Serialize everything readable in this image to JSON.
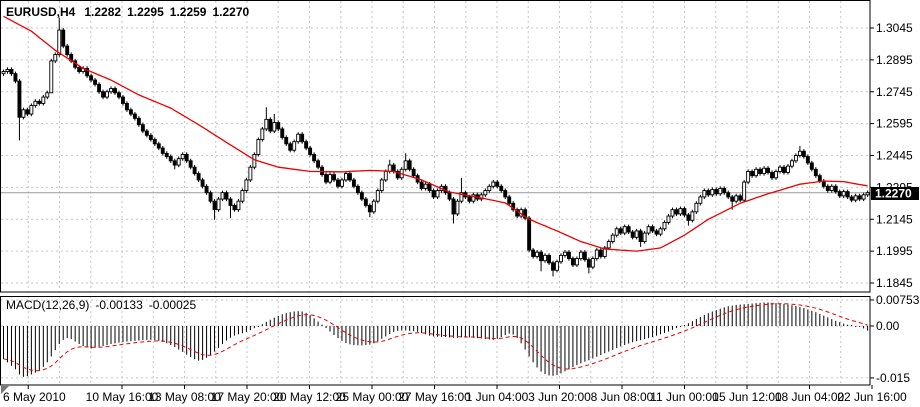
{
  "main_chart": {
    "symbol_period": "EURUSD,H4",
    "ohlc": {
      "open": "1.2282",
      "high": "1.2295",
      "low": "1.2259",
      "close": "1.2270"
    },
    "current_price": "1.2270",
    "price_axis_labels": [
      "1.3045",
      "1.2895",
      "1.2745",
      "1.2595",
      "1.2445",
      "1.2295",
      "1.2145",
      "1.1995",
      "1.1845"
    ]
  },
  "macd_panel": {
    "indicator_label": "MACD(12,26,9)",
    "macd_value": "-0.00133",
    "signal_value": "-0.00025",
    "axis_labels": [
      "0.00753",
      "0.00",
      "-0.015"
    ]
  },
  "date_axis": {
    "labels": [
      "6 May 2010",
      "10 May 16:00",
      "13 May 08:00",
      "17 May 20:00",
      "20 May 12:00",
      "25 May 00:00",
      "27 May 16:00",
      "1 Jun 04:00",
      "3 Jun 20:00",
      "8 Jun 08:00",
      "11 Jun 00:00",
      "15 Jun 12:00",
      "18 Jun 04:00",
      "22 Jun 16:00"
    ]
  },
  "colors": {
    "background": "#ffffff",
    "grid": "#c6c6c6",
    "bull_body": "#ffffff",
    "bear_body": "#000000",
    "candle_outline": "#000000",
    "ma_line": "#ee0000",
    "signal_line": "#ee0000",
    "histogram": "#000000",
    "price_line": "#999999",
    "price_badge_bg": "#000000",
    "price_badge_text": "#ffffff",
    "panel_border": "#000000",
    "text": "#000000"
  },
  "chart_data": [
    {
      "type": "candlestick",
      "title": "EURUSD,H4",
      "symbol": "EURUSD",
      "timeframe": "H4",
      "grid": "on",
      "y_ticks": [
        1.3045,
        1.2895,
        1.2745,
        1.2595,
        1.2445,
        1.2295,
        1.2145,
        1.1995,
        1.1845
      ],
      "current_price": 1.227,
      "bar_count": 218,
      "open_rule": "previous_close",
      "first_open": 1.283,
      "default_wick": 0.001,
      "closes": [
        1.284,
        1.285,
        1.283,
        1.2795,
        1.2625,
        1.266,
        1.264,
        1.268,
        1.27,
        1.269,
        1.272,
        1.274,
        1.289,
        1.292,
        1.3035,
        1.296,
        1.292,
        1.289,
        1.286,
        1.284,
        1.2855,
        1.282,
        1.28,
        1.278,
        1.2745,
        1.272,
        1.2745,
        1.276,
        1.274,
        1.272,
        1.269,
        1.266,
        1.264,
        1.262,
        1.259,
        1.256,
        1.254,
        1.252,
        1.25,
        1.248,
        1.2455,
        1.244,
        1.242,
        1.24,
        1.243,
        1.245,
        1.242,
        1.239,
        1.236,
        1.233,
        1.23,
        1.227,
        1.223,
        1.219,
        1.224,
        1.227,
        1.224,
        1.221,
        1.219,
        1.223,
        1.228,
        1.233,
        1.239,
        1.245,
        1.252,
        1.257,
        1.2615,
        1.256,
        1.26,
        1.257,
        1.253,
        1.25,
        1.247,
        1.251,
        1.2545,
        1.251,
        1.248,
        1.245,
        1.242,
        1.239,
        1.2355,
        1.232,
        1.2355,
        1.233,
        1.23,
        1.233,
        1.236,
        1.233,
        1.23,
        1.227,
        1.224,
        1.221,
        1.218,
        1.223,
        1.228,
        1.233,
        1.237,
        1.24,
        1.237,
        1.234,
        1.238,
        1.242,
        1.238,
        1.235,
        1.232,
        1.229,
        1.231,
        1.228,
        1.225,
        1.228,
        1.23,
        1.227,
        1.224,
        1.217,
        1.223,
        1.227,
        1.225,
        1.223,
        1.226,
        1.224,
        1.226,
        1.228,
        1.23,
        1.232,
        1.23,
        1.228,
        1.225,
        1.222,
        1.219,
        1.216,
        1.219,
        1.215,
        1.2,
        1.197,
        1.199,
        1.195,
        1.1975,
        1.194,
        1.1905,
        1.1945,
        1.1975,
        1.199,
        1.196,
        1.193,
        1.196,
        1.199,
        1.1955,
        1.192,
        1.196,
        1.2,
        1.197,
        1.201,
        1.204,
        1.207,
        1.21,
        1.208,
        1.211,
        1.2085,
        1.206,
        1.209,
        1.204,
        1.208,
        1.211,
        1.209,
        1.2075,
        1.21,
        1.213,
        1.216,
        1.219,
        1.217,
        1.2195,
        1.2165,
        1.214,
        1.218,
        1.222,
        1.225,
        1.228,
        1.226,
        1.2285,
        1.2265,
        1.229,
        1.227,
        1.225,
        1.223,
        1.2255,
        1.2235,
        1.232,
        1.237,
        1.235,
        1.238,
        1.236,
        1.2385,
        1.2365,
        1.234,
        1.237,
        1.239,
        1.2365,
        1.2395,
        1.242,
        1.2445,
        1.2465,
        1.244,
        1.241,
        1.238,
        1.235,
        1.2325,
        1.23,
        1.228,
        1.23,
        1.2275,
        1.2255,
        1.2275,
        1.225,
        1.2235,
        1.2255,
        1.224,
        1.226,
        1.227
      ],
      "wick_overrides": {
        "4": {
          "low": 1.2516
        },
        "12": {
          "low": 1.275
        },
        "14": {
          "high": 1.3093
        },
        "43": {
          "low": 1.238
        },
        "53": {
          "low": 1.2143
        },
        "57": {
          "low": 1.215
        },
        "66": {
          "high": 1.2672
        },
        "68": {
          "high": 1.264
        },
        "92": {
          "low": 1.2155
        },
        "97": {
          "high": 1.2425
        },
        "101": {
          "high": 1.2455
        },
        "113": {
          "low": 1.2125
        },
        "115": {
          "high": 1.234
        },
        "135": {
          "low": 1.19
        },
        "138": {
          "low": 1.1876
        },
        "147": {
          "low": 1.189
        },
        "160": {
          "low": 1.2015
        },
        "172": {
          "low": 1.2115
        },
        "183": {
          "low": 1.219
        },
        "200": {
          "high": 1.249
        }
      },
      "moving_average_red": {
        "anchors_index_price": [
          [
            0,
            1.31
          ],
          [
            7,
            1.303
          ],
          [
            13,
            1.294
          ],
          [
            20,
            1.2855
          ],
          [
            27,
            1.28
          ],
          [
            34,
            1.273
          ],
          [
            42,
            1.2668
          ],
          [
            49,
            1.259
          ],
          [
            57,
            1.2495
          ],
          [
            63,
            1.2425
          ],
          [
            69,
            1.239
          ],
          [
            77,
            1.237
          ],
          [
            85,
            1.2368
          ],
          [
            92,
            1.2375
          ],
          [
            98,
            1.237
          ],
          [
            105,
            1.233
          ],
          [
            112,
            1.2273
          ],
          [
            120,
            1.2245
          ],
          [
            126,
            1.2222
          ],
          [
            132,
            1.2145
          ],
          [
            139,
            1.209
          ],
          [
            145,
            1.204
          ],
          [
            151,
            1.2005
          ],
          [
            159,
            1.1995
          ],
          [
            165,
            1.201
          ],
          [
            171,
            1.207
          ],
          [
            177,
            1.2145
          ],
          [
            185,
            1.222
          ],
          [
            192,
            1.2265
          ],
          [
            200,
            1.231
          ],
          [
            206,
            1.2325
          ],
          [
            211,
            1.2322
          ],
          [
            217,
            1.2302
          ]
        ]
      }
    },
    {
      "type": "bar",
      "name": "MACD(12,26,9)",
      "grid": "on",
      "y_ticks": [
        0.00753,
        0,
        -0.015
      ],
      "signal_period": 9,
      "last_values": {
        "macd": -0.00133,
        "signal": -0.00025
      },
      "values": [
        -0.0095,
        -0.0105,
        -0.0115,
        -0.0125,
        -0.014,
        -0.0147,
        -0.0145,
        -0.014,
        -0.0135,
        -0.0128,
        -0.0118,
        -0.0105,
        -0.0088,
        -0.007,
        -0.0052,
        -0.004,
        -0.0035,
        -0.0038,
        -0.0045,
        -0.0052,
        -0.0058,
        -0.0062,
        -0.0065,
        -0.0063,
        -0.006,
        -0.0058,
        -0.0055,
        -0.0052,
        -0.005,
        -0.0048,
        -0.0046,
        -0.0045,
        -0.0044,
        -0.0043,
        -0.0042,
        -0.0041,
        -0.004,
        -0.004,
        -0.0041,
        -0.0043,
        -0.0046,
        -0.005,
        -0.0055,
        -0.0061,
        -0.0068,
        -0.0075,
        -0.0083,
        -0.009,
        -0.0096,
        -0.01,
        -0.0098,
        -0.0092,
        -0.0084,
        -0.0074,
        -0.0063,
        -0.0052,
        -0.0042,
        -0.0034,
        -0.0028,
        -0.0024,
        -0.0021,
        -0.0017,
        -0.0012,
        -0.0006,
        -0.0001,
        0.0005,
        0.0012,
        0.0018,
        0.0024,
        0.0029,
        0.0034,
        0.0037,
        0.004,
        0.0042,
        0.0043,
        0.0042,
        0.0038,
        0.0031,
        0.0022,
        0.0013,
        0.0004,
        -0.0006,
        -0.0016,
        -0.0026,
        -0.0035,
        -0.0043,
        -0.0049,
        -0.0053,
        -0.0055,
        -0.0056,
        -0.0056,
        -0.0055,
        -0.0054,
        -0.005,
        -0.0044,
        -0.0037,
        -0.003,
        -0.0023,
        -0.0017,
        -0.0014,
        -0.0013,
        -0.0013,
        -0.0014,
        -0.0015,
        -0.0017,
        -0.002,
        -0.0024,
        -0.0028,
        -0.003,
        -0.0031,
        -0.0032,
        -0.0032,
        -0.0033,
        -0.0034,
        -0.0034,
        -0.0033,
        -0.0033,
        -0.0033,
        -0.0034,
        -0.0035,
        -0.0036,
        -0.0038,
        -0.0039,
        -0.004,
        -0.0037,
        -0.0032,
        -0.0026,
        -0.0022,
        -0.0025,
        -0.0035,
        -0.005,
        -0.0068,
        -0.0088,
        -0.0105,
        -0.012,
        -0.0132,
        -0.0139,
        -0.0143,
        -0.0144,
        -0.0142,
        -0.0137,
        -0.0131,
        -0.0125,
        -0.0119,
        -0.0113,
        -0.0108,
        -0.0103,
        -0.0099,
        -0.0094,
        -0.0089,
        -0.0084,
        -0.0079,
        -0.0074,
        -0.0069,
        -0.0064,
        -0.0059,
        -0.0055,
        -0.0051,
        -0.0047,
        -0.0044,
        -0.0041,
        -0.0038,
        -0.0035,
        -0.0032,
        -0.0028,
        -0.0024,
        -0.002,
        -0.0016,
        -0.0011,
        -0.0006,
        -0.0002,
        0.0003,
        0.0008,
        0.0014,
        0.002,
        0.0026,
        0.0032,
        0.0037,
        0.0042,
        0.0046,
        0.005,
        0.0054,
        0.0057,
        0.0059,
        0.0061,
        0.0062,
        0.0063,
        0.0064,
        0.0065,
        0.0066,
        0.0067,
        0.0068,
        0.0068,
        0.0067,
        0.0066,
        0.0065,
        0.0064,
        0.0062,
        0.006,
        0.0058,
        0.0055,
        0.0052,
        0.0048,
        0.0044,
        0.004,
        0.0035,
        0.003,
        0.0025,
        0.002,
        0.0015,
        0.0011,
        0.0007,
        0.0004,
        0.0002,
        0.0,
        -0.0003,
        -0.0007,
        -0.00133
      ]
    }
  ]
}
